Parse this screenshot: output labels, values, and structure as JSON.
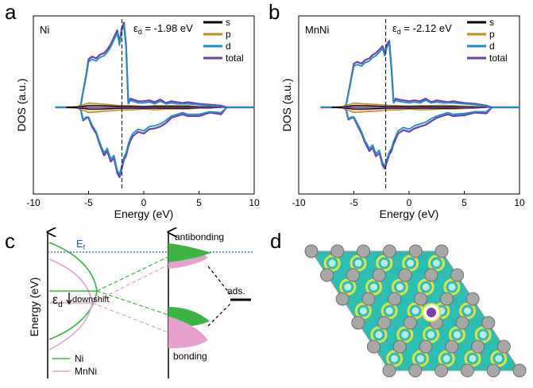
{
  "panel_letters": {
    "a": "a",
    "b": "b",
    "c": "c",
    "d": "d"
  },
  "colors": {
    "s": "#000000",
    "p": "#c8861e",
    "d": "#1f8fc8",
    "total": "#6a3fb5",
    "ni": "#3cb443",
    "mnni": "#e6a0cd",
    "fermi": "#1a56b8"
  },
  "chart_data": [
    {
      "type": "line",
      "panel": "a",
      "label": "Ni",
      "ed_text": "ε",
      "ed_sub": "d",
      "ed_value_text": " = -1.98 eV",
      "ed": -1.98,
      "xlabel": "Energy (eV)",
      "ylabel": "DOS (a.u.)",
      "xlim": [
        -10,
        10
      ],
      "ylim": [
        -1.0,
        1.0
      ],
      "xticks": [
        -10,
        -5,
        0,
        5,
        10
      ],
      "xtick_labels": [
        "-10",
        "-5",
        "0",
        "5",
        "10"
      ],
      "legend": [
        "s",
        "p",
        "d",
        "total"
      ],
      "legend_position": "top-right",
      "series": [
        {
          "name": "total",
          "x": [
            -8,
            -6,
            -5.7,
            -5.5,
            -5.2,
            -5.0,
            -4.7,
            -4.3,
            -4.0,
            -3.6,
            -3.3,
            -3.0,
            -2.7,
            -2.4,
            -2.2,
            -2.0,
            -1.8,
            -1.6,
            -1.4,
            -1.2,
            -1.0,
            -0.5,
            0,
            0.5,
            1,
            1.5,
            2,
            2.5,
            3,
            3.5,
            4,
            5,
            6,
            7,
            7.5,
            10
          ],
          "up": [
            0,
            0,
            0.03,
            0.18,
            0.38,
            0.55,
            0.58,
            0.56,
            0.6,
            0.62,
            0.66,
            0.72,
            0.8,
            0.88,
            0.74,
            0.9,
            0.97,
            0.7,
            0.05,
            0.1,
            0.09,
            0.07,
            0.07,
            0.08,
            0.06,
            0.09,
            0.05,
            0.07,
            0.06,
            0.05,
            0.06,
            0.04,
            0.03,
            0.02,
            0,
            0
          ],
          "down": [
            0,
            0,
            -0.03,
            -0.15,
            -0.12,
            -0.12,
            -0.22,
            -0.3,
            -0.42,
            -0.55,
            -0.5,
            -0.62,
            -0.58,
            -0.75,
            -0.8,
            -0.7,
            -0.6,
            -0.55,
            -0.45,
            -0.38,
            -0.33,
            -0.28,
            -0.3,
            -0.25,
            -0.24,
            -0.22,
            -0.18,
            -0.12,
            -0.1,
            -0.08,
            -0.1,
            -0.1,
            -0.06,
            -0.08,
            0,
            0
          ]
        },
        {
          "name": "d",
          "x": [
            -8,
            -6,
            -5.7,
            -5.5,
            -5.2,
            -5.0,
            -4.7,
            -4.3,
            -4.0,
            -3.6,
            -3.3,
            -3.0,
            -2.7,
            -2.4,
            -2.2,
            -2.0,
            -1.8,
            -1.6,
            -1.4,
            -1.2,
            -1.0,
            -0.5,
            0,
            0.5,
            1,
            1.5,
            2,
            2.5,
            3,
            3.5,
            4,
            5,
            6,
            7,
            7.5,
            10
          ],
          "up": [
            0,
            0,
            0.03,
            0.17,
            0.36,
            0.52,
            0.55,
            0.53,
            0.57,
            0.59,
            0.63,
            0.69,
            0.77,
            0.85,
            0.71,
            0.87,
            0.94,
            0.67,
            0.04,
            0.08,
            0.07,
            0.05,
            0.05,
            0.06,
            0.04,
            0.07,
            0.04,
            0.05,
            0.04,
            0.04,
            0.04,
            0.03,
            0.02,
            0.01,
            0,
            0
          ],
          "down": [
            0,
            0,
            -0.03,
            -0.14,
            -0.11,
            -0.11,
            -0.2,
            -0.28,
            -0.4,
            -0.52,
            -0.47,
            -0.59,
            -0.55,
            -0.72,
            -0.77,
            -0.67,
            -0.57,
            -0.52,
            -0.42,
            -0.35,
            -0.3,
            -0.25,
            -0.27,
            -0.22,
            -0.21,
            -0.19,
            -0.15,
            -0.1,
            -0.08,
            -0.06,
            -0.08,
            -0.08,
            -0.05,
            -0.06,
            0,
            0
          ]
        },
        {
          "name": "p",
          "x": [
            -7,
            -6,
            -5,
            -4,
            -3,
            -2,
            -1,
            0,
            1,
            2,
            3,
            4,
            5,
            6,
            7
          ],
          "up": [
            0,
            0.01,
            0.05,
            0.04,
            0.03,
            0.02,
            0.02,
            0.01,
            0.02,
            0.02,
            0.02,
            0.02,
            0.01,
            0.01,
            0
          ],
          "down": [
            0,
            -0.01,
            -0.06,
            -0.05,
            -0.04,
            -0.03,
            -0.03,
            -0.02,
            -0.03,
            -0.02,
            -0.02,
            -0.02,
            -0.01,
            -0.01,
            0
          ]
        },
        {
          "name": "s",
          "x": [
            -7,
            -6,
            -5,
            -4,
            -3,
            -2,
            -1,
            0,
            1,
            2,
            3,
            4,
            5,
            6,
            7
          ],
          "up": [
            0,
            0.005,
            0.02,
            0.02,
            0.015,
            0.01,
            0.01,
            0.01,
            0.01,
            0.01,
            0.01,
            0.01,
            0.005,
            0.005,
            0
          ],
          "down": [
            0,
            -0.005,
            -0.02,
            -0.02,
            -0.015,
            -0.01,
            -0.01,
            -0.01,
            -0.01,
            -0.01,
            -0.01,
            -0.01,
            -0.005,
            -0.005,
            0
          ]
        }
      ]
    },
    {
      "type": "line",
      "panel": "b",
      "label": "MnNi",
      "ed_text": "ε",
      "ed_sub": "d",
      "ed_value_text": " = -2.12 eV",
      "ed": -2.12,
      "xlabel": "Energy (eV)",
      "ylabel": "DOS (a.u.)",
      "xlim": [
        -10,
        10
      ],
      "ylim": [
        -1.0,
        1.0
      ],
      "xticks": [
        -10,
        -5,
        0,
        5,
        10
      ],
      "xtick_labels": [
        "-10",
        "-5",
        "0",
        "5",
        "10"
      ],
      "legend": [
        "s",
        "p",
        "d",
        "total"
      ],
      "legend_position": "top-right",
      "series": [
        {
          "name": "total",
          "x": [
            -8,
            -6,
            -5.7,
            -5.5,
            -5.2,
            -5.0,
            -4.7,
            -4.3,
            -4.0,
            -3.6,
            -3.3,
            -3.0,
            -2.7,
            -2.4,
            -2.2,
            -2.0,
            -1.8,
            -1.6,
            -1.4,
            -1.2,
            -1.0,
            -0.5,
            0,
            0.5,
            1,
            1.5,
            2,
            2.5,
            3,
            3.5,
            4,
            5,
            6,
            7,
            7.5,
            10
          ],
          "up": [
            0,
            0,
            0.03,
            0.16,
            0.36,
            0.5,
            0.52,
            0.5,
            0.54,
            0.56,
            0.6,
            0.62,
            0.66,
            0.7,
            0.62,
            0.72,
            0.76,
            0.45,
            0.06,
            0.1,
            0.09,
            0.08,
            0.07,
            0.08,
            0.07,
            0.1,
            0.06,
            0.08,
            0.07,
            0.06,
            0.07,
            0.05,
            0.04,
            0.02,
            0,
            0
          ],
          "down": [
            0,
            0,
            -0.03,
            -0.14,
            -0.12,
            -0.12,
            -0.2,
            -0.3,
            -0.4,
            -0.5,
            -0.46,
            -0.56,
            -0.52,
            -0.66,
            -0.7,
            -0.62,
            -0.54,
            -0.5,
            -0.42,
            -0.36,
            -0.3,
            -0.26,
            -0.28,
            -0.24,
            -0.22,
            -0.2,
            -0.16,
            -0.12,
            -0.1,
            -0.08,
            -0.1,
            -0.09,
            -0.06,
            -0.07,
            0,
            0
          ]
        },
        {
          "name": "d",
          "x": [
            -8,
            -6,
            -5.7,
            -5.5,
            -5.2,
            -5.0,
            -4.7,
            -4.3,
            -4.0,
            -3.6,
            -3.3,
            -3.0,
            -2.7,
            -2.4,
            -2.2,
            -2.0,
            -1.8,
            -1.6,
            -1.4,
            -1.2,
            -1.0,
            -0.5,
            0,
            0.5,
            1,
            1.5,
            2,
            2.5,
            3,
            3.5,
            4,
            5,
            6,
            7,
            7.5,
            10
          ],
          "up": [
            0,
            0,
            0.03,
            0.15,
            0.34,
            0.47,
            0.49,
            0.47,
            0.51,
            0.53,
            0.57,
            0.59,
            0.63,
            0.67,
            0.59,
            0.69,
            0.73,
            0.42,
            0.05,
            0.08,
            0.07,
            0.06,
            0.05,
            0.06,
            0.05,
            0.08,
            0.05,
            0.06,
            0.05,
            0.05,
            0.05,
            0.04,
            0.03,
            0.01,
            0,
            0
          ],
          "down": [
            0,
            0,
            -0.03,
            -0.13,
            -0.11,
            -0.11,
            -0.18,
            -0.28,
            -0.38,
            -0.47,
            -0.43,
            -0.53,
            -0.49,
            -0.63,
            -0.67,
            -0.59,
            -0.51,
            -0.47,
            -0.39,
            -0.33,
            -0.27,
            -0.23,
            -0.25,
            -0.21,
            -0.19,
            -0.17,
            -0.13,
            -0.1,
            -0.08,
            -0.06,
            -0.08,
            -0.07,
            -0.05,
            -0.05,
            0,
            0
          ]
        },
        {
          "name": "p",
          "x": [
            -7,
            -6,
            -5,
            -4,
            -3,
            -2,
            -1,
            0,
            1,
            2,
            3,
            4,
            5,
            6,
            7
          ],
          "up": [
            0,
            0.01,
            0.05,
            0.04,
            0.035,
            0.025,
            0.02,
            0.015,
            0.02,
            0.02,
            0.025,
            0.02,
            0.015,
            0.01,
            0
          ],
          "down": [
            0,
            -0.01,
            -0.06,
            -0.05,
            -0.045,
            -0.03,
            -0.03,
            -0.02,
            -0.03,
            -0.025,
            -0.02,
            -0.02,
            -0.015,
            -0.01,
            0
          ]
        },
        {
          "name": "s",
          "x": [
            -7,
            -6,
            -5,
            -4,
            -3,
            -2,
            -1,
            0,
            1,
            2,
            3,
            4,
            5,
            6,
            7
          ],
          "up": [
            0,
            0.005,
            0.02,
            0.02,
            0.015,
            0.01,
            0.01,
            0.01,
            0.01,
            0.01,
            0.01,
            0.01,
            0.005,
            0.005,
            0
          ],
          "down": [
            0,
            -0.005,
            -0.02,
            -0.02,
            -0.015,
            -0.01,
            -0.01,
            -0.01,
            -0.01,
            -0.01,
            -0.01,
            -0.01,
            -0.005,
            -0.005,
            0
          ]
        }
      ]
    }
  ],
  "diagram_c": {
    "ylabel": "Energy (eV)",
    "fermi_label": "E",
    "fermi_sub": "f",
    "ed_label": "ε",
    "ed_sub": "d",
    "downshift_label": "downshift",
    "antibonding_label": "antibonding",
    "bonding_label": "bonding",
    "ads_label": "ads.",
    "legend": [
      "Ni",
      "MnNi"
    ]
  }
}
